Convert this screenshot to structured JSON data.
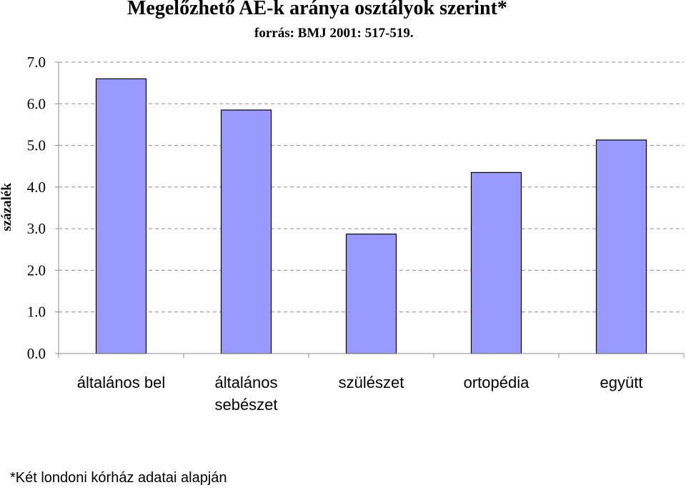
{
  "chart_data": {
    "type": "bar",
    "title": "Megelőzhető AE-k aránya osztályok szerint*",
    "subtitle": "forrás: BMJ 2001: 517-519.",
    "xlabel": "",
    "ylabel": "százalék",
    "categories": [
      "általános bel",
      "általános sebészet",
      "szülészet",
      "ortopédia",
      "együtt"
    ],
    "category_lines": [
      [
        "általános bel"
      ],
      [
        "általános",
        "sebészet"
      ],
      [
        "szülészet"
      ],
      [
        "ortopédia"
      ],
      [
        "együtt"
      ]
    ],
    "values": [
      6.6,
      5.85,
      2.87,
      4.35,
      5.13
    ],
    "ylim": [
      0,
      7
    ],
    "yticks": [
      "0.0",
      "1.0",
      "2.0",
      "3.0",
      "4.0",
      "5.0",
      "6.0",
      "7.0"
    ],
    "grid": true,
    "legend": "none",
    "bar_color": "#9999ff",
    "footnote": "*Két londoni kórház adatai alapján"
  }
}
